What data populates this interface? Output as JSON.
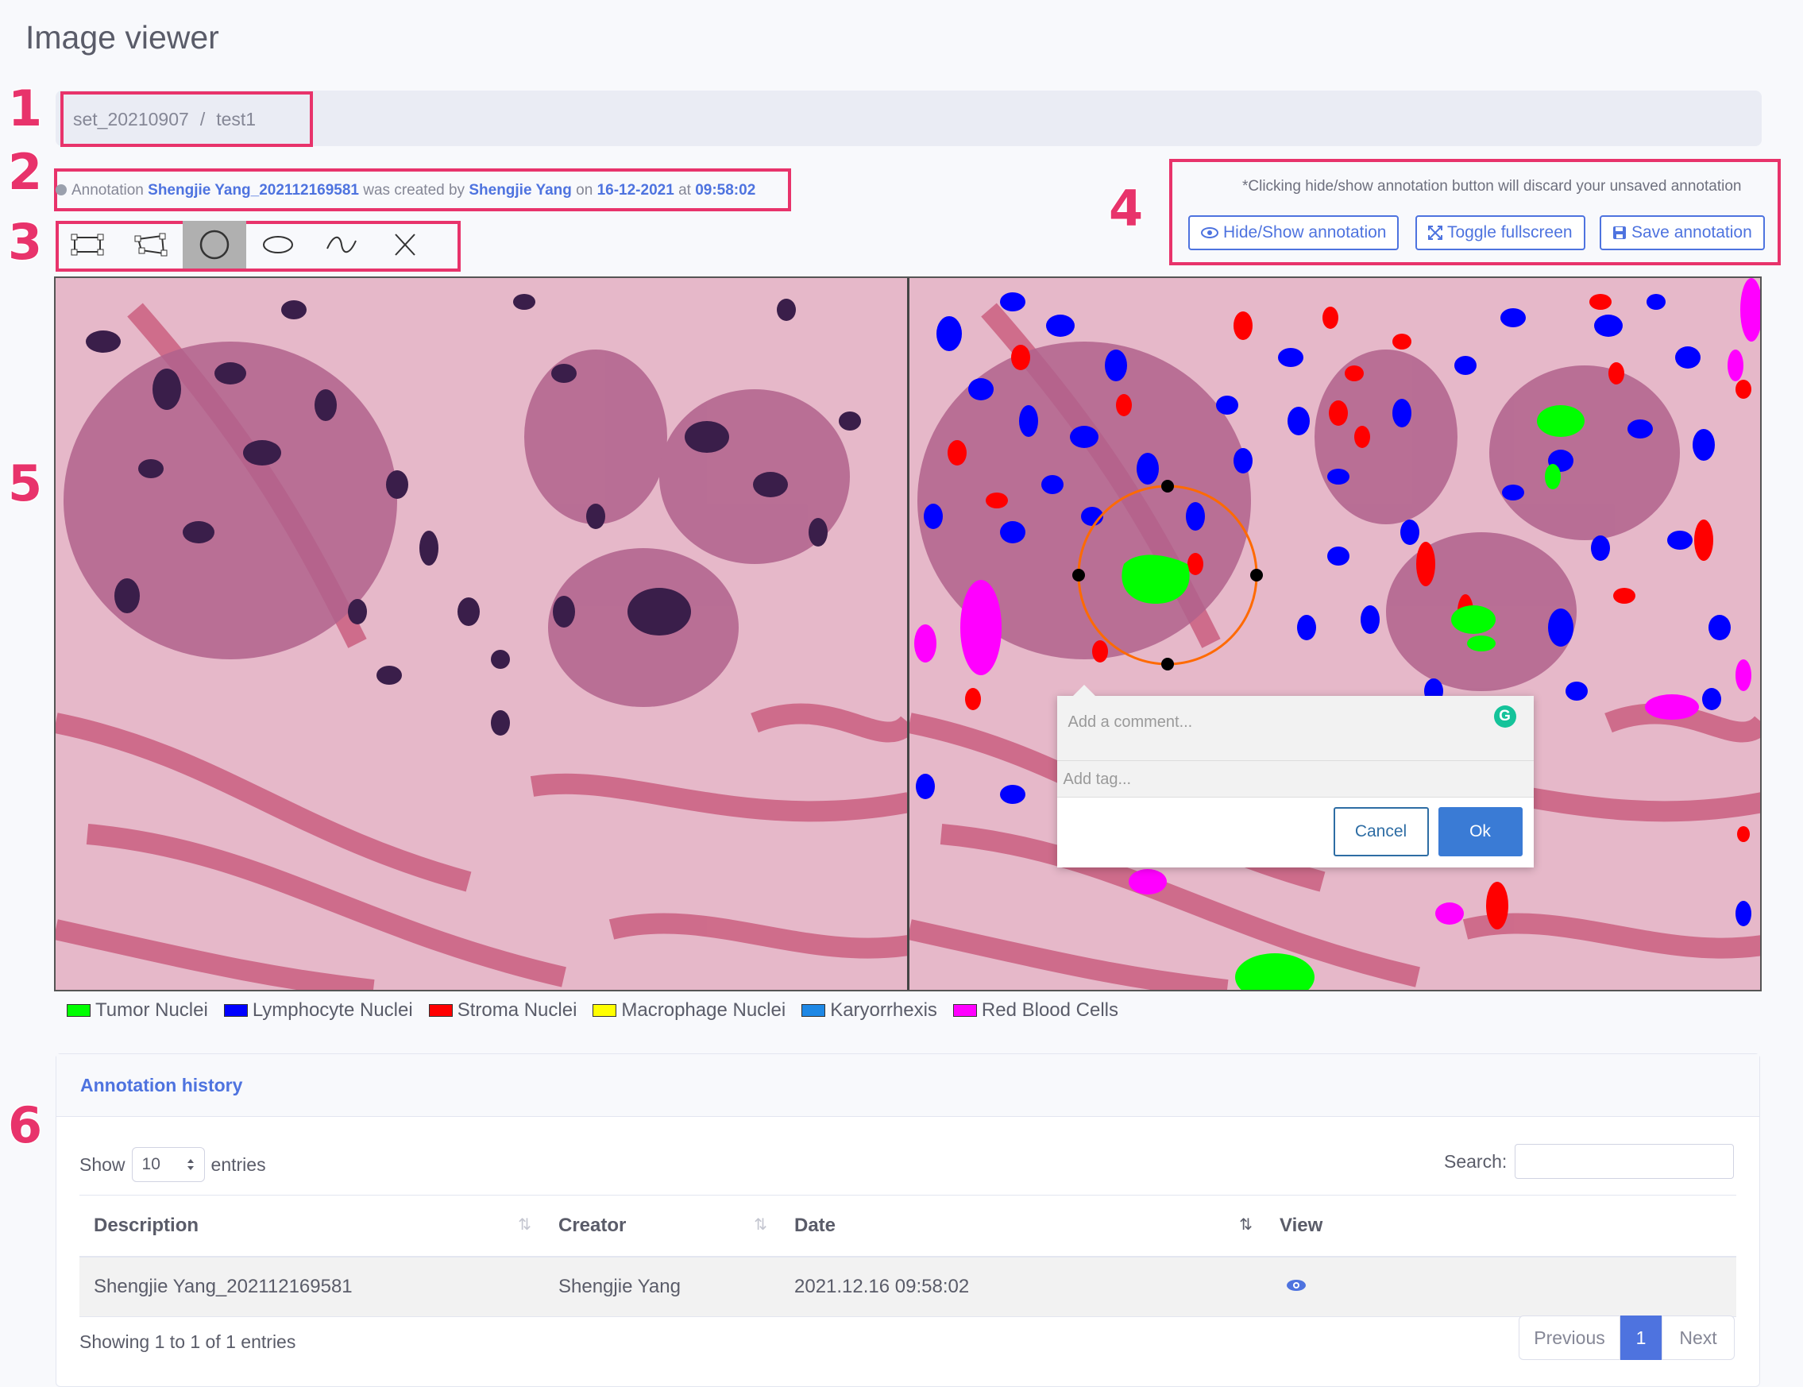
{
  "page": {
    "title": "Image viewer"
  },
  "breadcrumb": {
    "set": "set_20210907",
    "separator": "/",
    "item": "test1"
  },
  "callouts": [
    "1",
    "2",
    "3",
    "4",
    "5",
    "6"
  ],
  "annotation_info": {
    "prefix": "Annotation",
    "name": "Shengjie Yang_202112169581",
    "created_by_text": "was created by",
    "creator": "Shengjie Yang",
    "on_text": "on",
    "date": "16-12-2021",
    "at_text": "at",
    "time": "09:58:02"
  },
  "toolbar": {
    "tools": [
      {
        "icon": "rectangle-tool-icon",
        "active": false
      },
      {
        "icon": "polygon-tool-icon",
        "active": false
      },
      {
        "icon": "circle-tool-icon",
        "active": true
      },
      {
        "icon": "ellipse-tool-icon",
        "active": false
      },
      {
        "icon": "freehand-tool-icon",
        "active": false
      },
      {
        "icon": "point-tool-icon",
        "active": false
      }
    ]
  },
  "actions": {
    "note": "*Clicking hide/show annotation button will discard your unsaved annotation",
    "hide_show_label": "Hide/Show annotation",
    "fullscreen_label": "Toggle fullscreen",
    "save_label": "Save annotation"
  },
  "comment_popup": {
    "comment_placeholder": "Add a comment...",
    "tag_placeholder": "Add tag...",
    "cancel_label": "Cancel",
    "ok_label": "Ok",
    "grammarly_glyph": "G"
  },
  "legend": [
    {
      "label": "Tumor Nuclei",
      "color": "#00ff00"
    },
    {
      "label": "Lymphocyte Nuclei",
      "color": "#0000ff"
    },
    {
      "label": "Stroma Nuclei",
      "color": "#ff0000"
    },
    {
      "label": "Macrophage Nuclei",
      "color": "#ffff00"
    },
    {
      "label": "Karyorrhexis",
      "color": "#1e88e5"
    },
    {
      "label": "Red Blood Cells",
      "color": "#ff00ff"
    }
  ],
  "history": {
    "title": "Annotation history",
    "show_label": "Show",
    "page_size": "10",
    "entries_label": "entries",
    "search_label": "Search:",
    "columns": [
      "Description",
      "Creator",
      "Date",
      "View"
    ],
    "rows": [
      {
        "description": "Shengjie Yang_202112169581",
        "creator": "Shengjie Yang",
        "date": "2021.12.16 09:58:02",
        "view_icon": "eye-icon"
      }
    ],
    "summary": "Showing 1 to 1 of 1 entries",
    "pagination": {
      "previous": "Previous",
      "current": "1",
      "next": "Next"
    }
  },
  "colors": {
    "accent": "#4e73df",
    "callout": "#e8336b"
  }
}
